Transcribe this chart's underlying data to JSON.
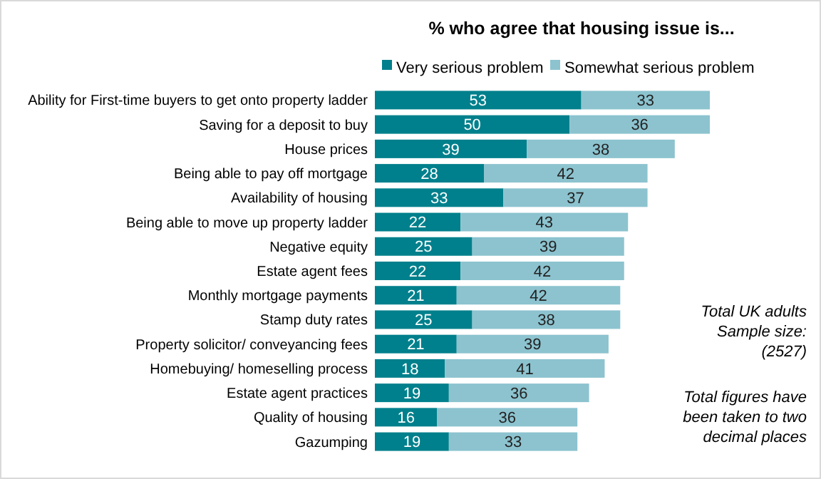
{
  "chart_data": {
    "type": "bar",
    "orientation": "horizontal",
    "stacked": true,
    "data_labels": true,
    "legend": "top",
    "title": "% who agree that housing issue is...",
    "categories": [
      "Ability for First-time buyers to get onto property ladder",
      "Saving for a deposit to buy",
      "House prices",
      "Being able to pay off mortgage",
      "Availability of housing",
      "Being able to move up property ladder",
      "Negative equity",
      "Estate agent fees",
      "Monthly mortgage payments",
      "Stamp duty rates",
      "Property solicitor/ conveyancing fees",
      "Homebuying/ homeselling process",
      "Estate agent practices",
      "Quality of housing",
      "Gazumping"
    ],
    "series": [
      {
        "name": "Very serious problem",
        "color": "#00808c",
        "values": [
          53,
          50,
          39,
          28,
          33,
          22,
          25,
          22,
          21,
          25,
          21,
          18,
          19,
          16,
          19
        ]
      },
      {
        "name": "Somewhat serious problem",
        "color": "#8cc3cf",
        "values": [
          33,
          36,
          38,
          42,
          37,
          43,
          39,
          42,
          42,
          38,
          39,
          41,
          36,
          36,
          33
        ]
      }
    ],
    "annotations": [
      "Total UK adults\nSample size:\n(2527)",
      "Total figures have\nbeen taken to two\ndecimal places"
    ]
  }
}
